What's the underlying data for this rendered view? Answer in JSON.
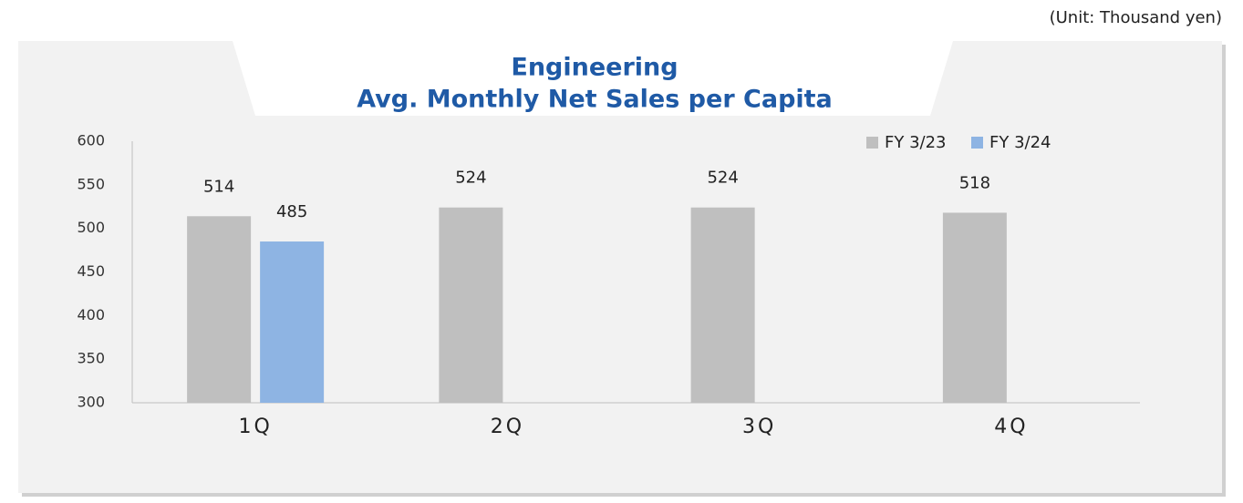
{
  "unit_note": "(Unit: Thousand yen)",
  "chart_data": {
    "type": "bar",
    "title": [
      "Engineering",
      "Avg. Monthly Net Sales per Capita"
    ],
    "categories": [
      "1Q",
      "2Q",
      "3Q",
      "4Q"
    ],
    "series": [
      {
        "name": "FY 3/23",
        "color": "#bfbfbf",
        "values": [
          514,
          524,
          524,
          518
        ]
      },
      {
        "name": "FY 3/24",
        "color": "#8eb4e3",
        "values": [
          485,
          null,
          null,
          null
        ]
      }
    ],
    "ylim": [
      300,
      600
    ],
    "yticks": [
      300,
      350,
      400,
      450,
      500,
      550,
      600
    ],
    "grid": false,
    "legend": "top-right"
  }
}
